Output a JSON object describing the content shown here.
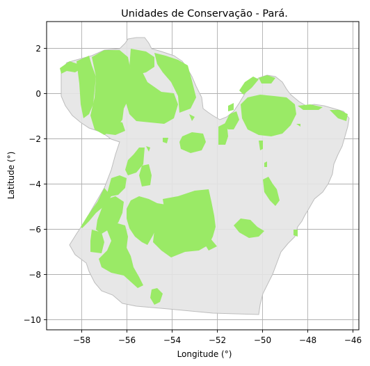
{
  "figure": {
    "title": "Unidades de Conservação - Pará.",
    "xlabel": "Longitude (°)",
    "ylabel": "Latitude (°)"
  },
  "axes": {
    "x_ticks": [
      {
        "value": -58,
        "label": "−58"
      },
      {
        "value": -56,
        "label": "−56"
      },
      {
        "value": -54,
        "label": "−54"
      },
      {
        "value": -52,
        "label": "−52"
      },
      {
        "value": -50,
        "label": "−50"
      },
      {
        "value": -48,
        "label": "−48"
      },
      {
        "value": -46,
        "label": "−46"
      }
    ],
    "y_ticks": [
      {
        "value": 2,
        "label": "2"
      },
      {
        "value": 0,
        "label": "0"
      },
      {
        "value": -2,
        "label": "−2"
      },
      {
        "value": -4,
        "label": "−4"
      },
      {
        "value": -6,
        "label": "−6"
      },
      {
        "value": -8,
        "label": "−8"
      },
      {
        "value": -10,
        "label": "−10"
      }
    ],
    "xlim": [
      -59.5,
      -45.7
    ],
    "ylim": [
      -10.45,
      3.2
    ],
    "grid": true
  },
  "colors": {
    "state_fill": "#e4e4e4",
    "state_edge": "#bdbdbd",
    "protected_area_fill": "#9aea66",
    "grid": "#b0b0b0"
  }
}
